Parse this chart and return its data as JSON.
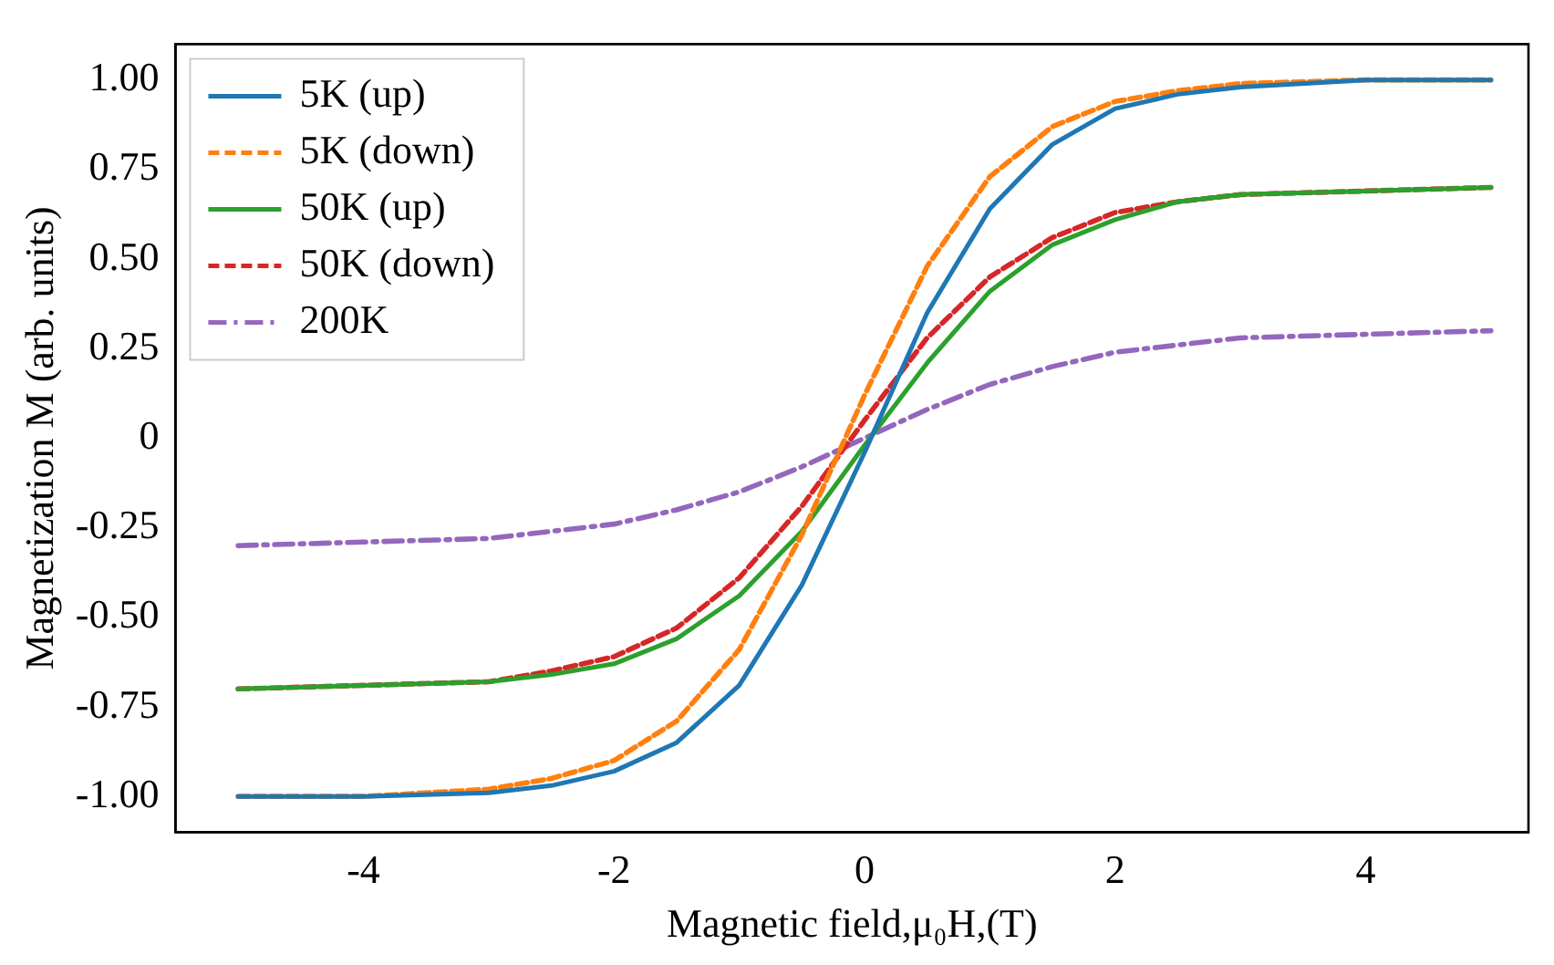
{
  "chart_data": {
    "type": "line",
    "xlabel": "Magnetic field,μ₀H,(T)",
    "ylabel": "Magnetization M (arb. units)",
    "x": [
      -5,
      -4,
      -3,
      -2.5,
      -2,
      -1.5,
      -1,
      -0.5,
      0,
      0.5,
      1,
      1.5,
      2,
      2.5,
      3,
      4,
      5
    ],
    "series": [
      {
        "name": "5K (up)",
        "color": "#1f77b4",
        "line_style": "solid",
        "values": [
          -1.0,
          -1.0,
          -0.99,
          -0.97,
          -0.93,
          -0.85,
          -0.69,
          -0.41,
          -0.04,
          0.35,
          0.64,
          0.82,
          0.92,
          0.96,
          0.98,
          1.0,
          1.0
        ]
      },
      {
        "name": "5K (down)",
        "color": "#ff7f0e",
        "line_style": "dashed",
        "values": [
          -1.0,
          -1.0,
          -0.98,
          -0.95,
          -0.9,
          -0.79,
          -0.59,
          -0.27,
          0.12,
          0.48,
          0.73,
          0.87,
          0.94,
          0.97,
          0.99,
          1.0,
          1.0
        ]
      },
      {
        "name": "50K (up)",
        "color": "#2ca02c",
        "line_style": "solid",
        "values": [
          -0.7,
          -0.69,
          -0.68,
          -0.66,
          -0.63,
          -0.56,
          -0.44,
          -0.26,
          -0.02,
          0.21,
          0.41,
          0.54,
          0.61,
          0.66,
          0.68,
          0.69,
          0.7
        ]
      },
      {
        "name": "50K (down)",
        "color": "#d62728",
        "line_style": "dashed",
        "values": [
          -0.7,
          -0.69,
          -0.68,
          -0.65,
          -0.61,
          -0.53,
          -0.39,
          -0.19,
          0.05,
          0.28,
          0.45,
          0.56,
          0.63,
          0.66,
          0.68,
          0.69,
          0.7
        ]
      },
      {
        "name": "200K",
        "color": "#9467bd",
        "line_style": "dashdot",
        "values": [
          -0.3,
          -0.29,
          -0.28,
          -0.26,
          -0.24,
          -0.2,
          -0.15,
          -0.08,
          0.0,
          0.08,
          0.15,
          0.2,
          0.24,
          0.26,
          0.28,
          0.29,
          0.3
        ]
      }
    ],
    "xlim": [
      -5.5,
      5.3
    ],
    "xticks": [
      -4,
      -2,
      0,
      2,
      4
    ],
    "ylim": [
      -1.1,
      1.1
    ],
    "yticks": [
      {
        "value": -1,
        "label": "-1.00"
      },
      {
        "value": -0.75,
        "label": "-0.75"
      },
      {
        "value": -0.5,
        "label": "-0.50"
      },
      {
        "value": -0.25,
        "label": "-0.25"
      },
      {
        "value": 0,
        "label": "0"
      },
      {
        "value": 0.25,
        "label": "0.25"
      },
      {
        "value": 0.5,
        "label": "0.50"
      },
      {
        "value": 0.75,
        "label": "0.75"
      },
      {
        "value": 1,
        "label": "1.00"
      }
    ],
    "grid": false,
    "legend": "top left",
    "marker": "none"
  }
}
